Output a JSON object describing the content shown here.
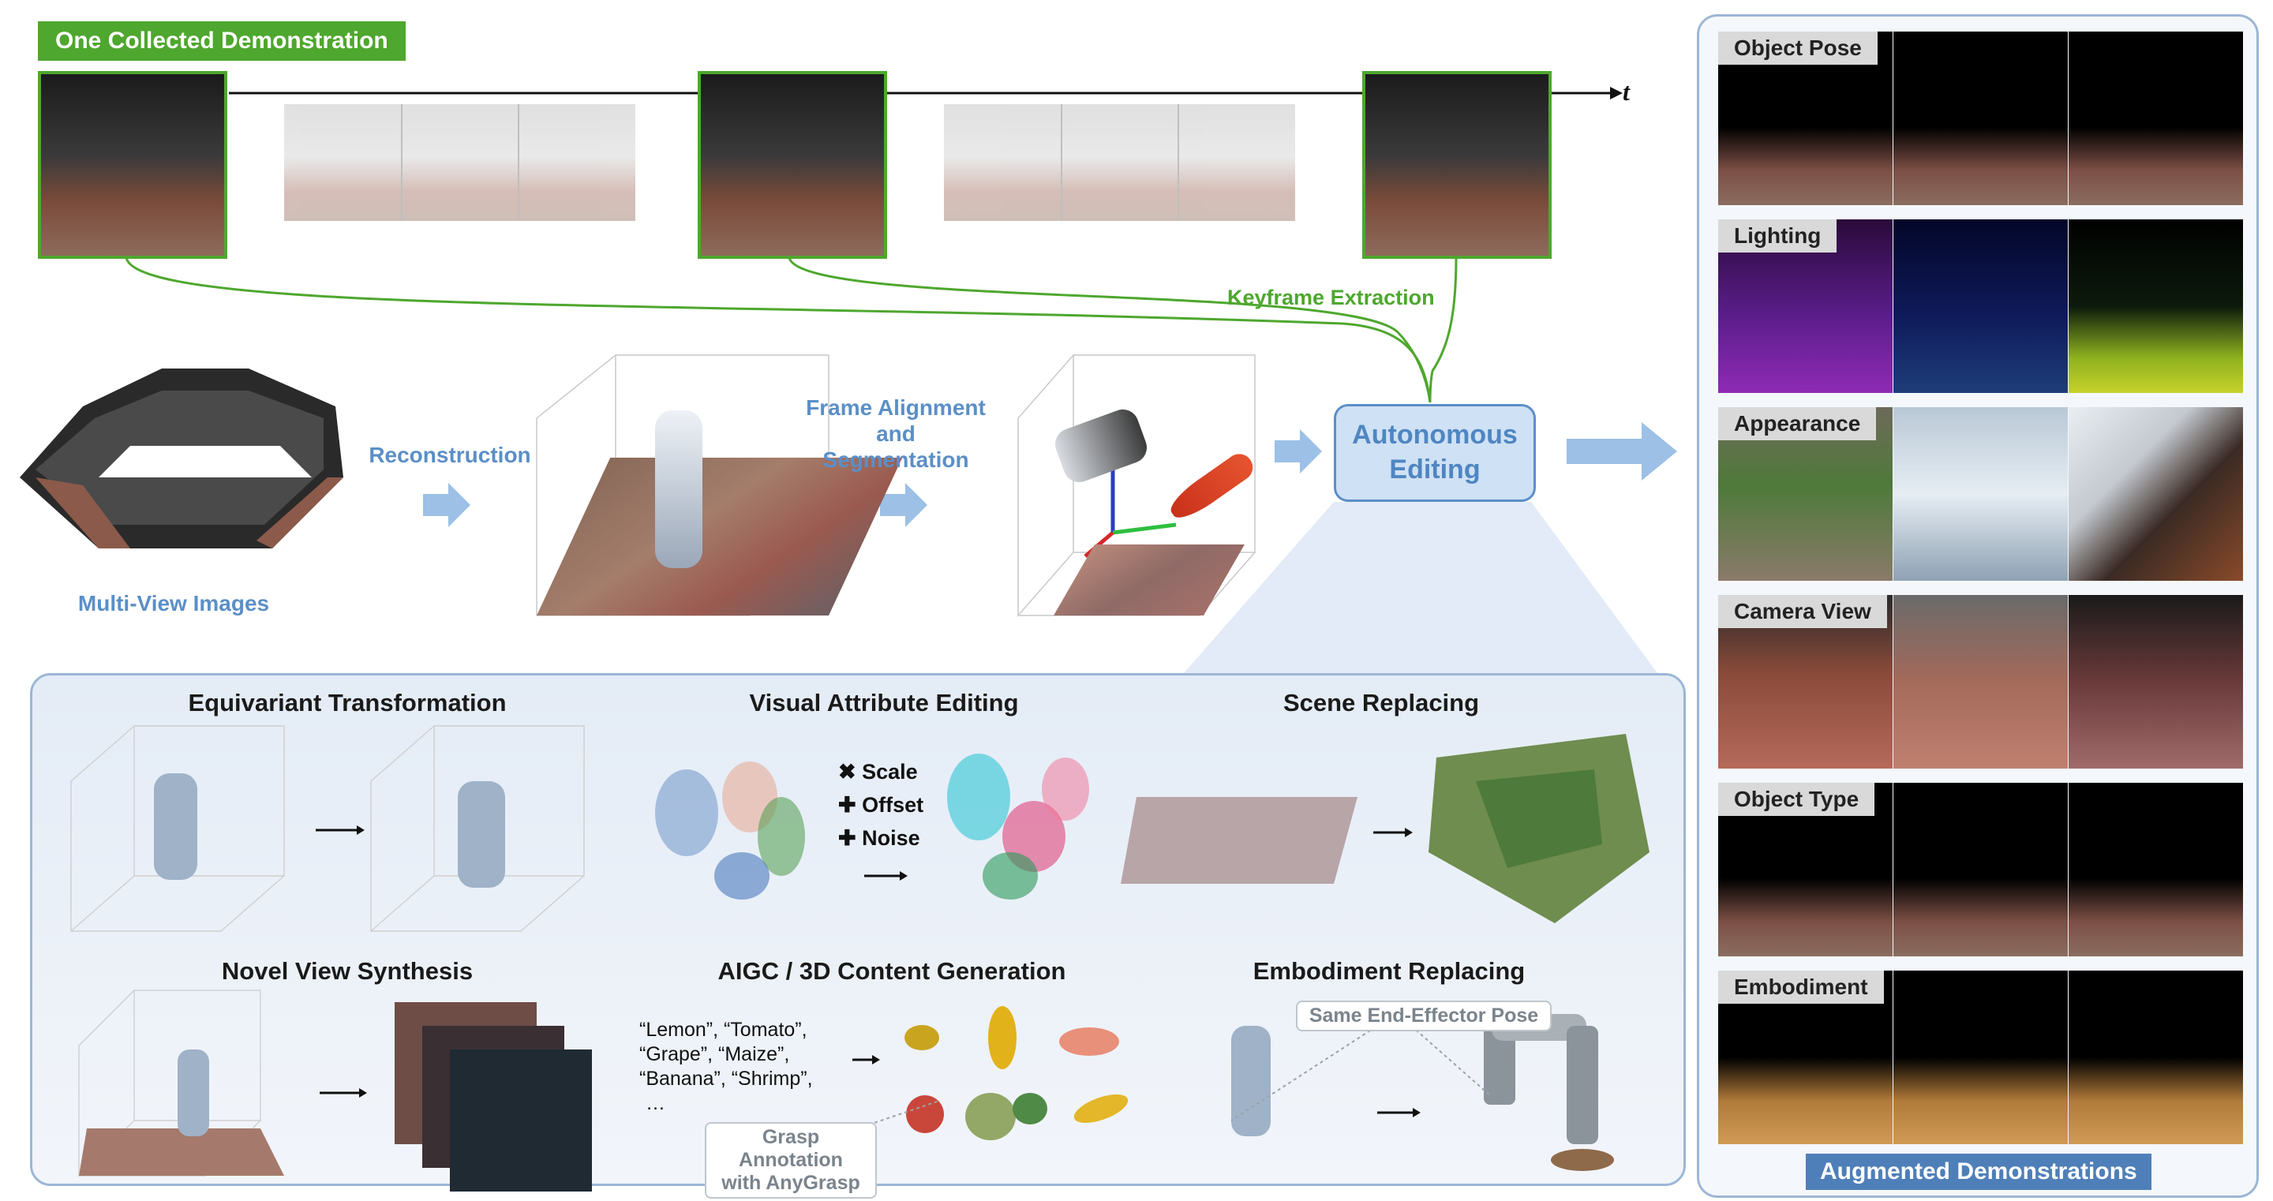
{
  "header": {
    "demo_label": "One Collected Demonstration",
    "time_symbol": "t"
  },
  "pipeline": {
    "keyframe_label": "Keyframe Extraction",
    "multiview_label": "Multi-View Images",
    "reconstruction_label": "Reconstruction",
    "alignment_label_line1": "Frame Alignment",
    "alignment_label_line2": "and",
    "alignment_label_line3": "Segmentation",
    "editing_label_line1": "Autonomous",
    "editing_label_line2": "Editing"
  },
  "editing_panel": {
    "equivariant_title": "Equivariant Transformation",
    "visual_title": "Visual Attribute Editing",
    "visual_ops": [
      "✖ Scale",
      "✚ Offset",
      "✚ Noise"
    ],
    "scene_title": "Scene Replacing",
    "novel_title": "Novel View Synthesis",
    "aigc_title": "AIGC / 3D Content Generation",
    "aigc_prompts": [
      "“Lemon”, “Tomato”,",
      "“Grape”, “Maize”,",
      "“Banana”, “Shrimp”,",
      "…"
    ],
    "grasp_line1": "Grasp Annotation",
    "grasp_line2": "with AnyGrasp",
    "embodiment_title": "Embodiment Replacing",
    "same_pose_label": "Same End-Effector Pose"
  },
  "augmented": {
    "rows": [
      {
        "label": "Object Pose"
      },
      {
        "label": "Lighting"
      },
      {
        "label": "Appearance"
      },
      {
        "label": "Camera View"
      },
      {
        "label": "Object Type"
      },
      {
        "label": "Embodiment"
      }
    ],
    "footer_label": "Augmented Demonstrations"
  },
  "colors": {
    "green": "#4ea72e",
    "blue_text": "#5b8fc7",
    "arrow_blue": "#9cc0e6",
    "footer_blue": "#4f7fb8"
  }
}
